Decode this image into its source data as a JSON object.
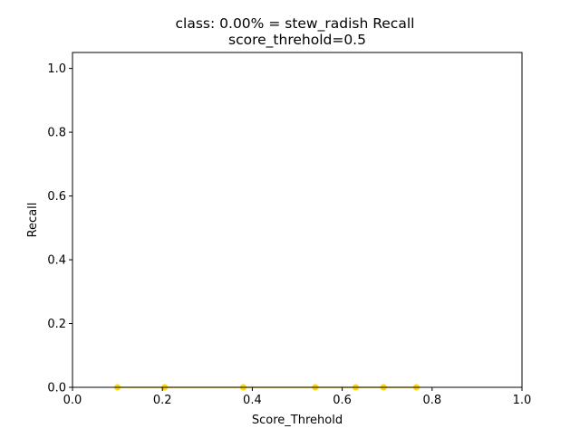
{
  "chart_data": {
    "type": "line",
    "title": "class: 0.00% = stew_radish Recall",
    "subtitle": "score_threhold=0.5",
    "xlabel": "Score_Threhold",
    "ylabel": "Recall",
    "xlim": [
      0.0,
      1.0
    ],
    "ylim": [
      0.0,
      1.05
    ],
    "x_ticks": [
      "0.0",
      "0.2",
      "0.4",
      "0.6",
      "0.8",
      "1.0"
    ],
    "y_ticks": [
      "0.0",
      "0.2",
      "0.4",
      "0.6",
      "0.8",
      "1.0"
    ],
    "grid": false,
    "series": [
      {
        "x": [
          0.1,
          0.205,
          0.38,
          0.54,
          0.63,
          0.692,
          0.765
        ],
        "y": [
          0.0,
          0.0,
          0.0,
          0.0,
          0.0,
          0.0,
          0.0
        ]
      }
    ],
    "colors": {
      "series": "#FFD700",
      "axes": "#000000",
      "background": "#ffffff"
    }
  }
}
